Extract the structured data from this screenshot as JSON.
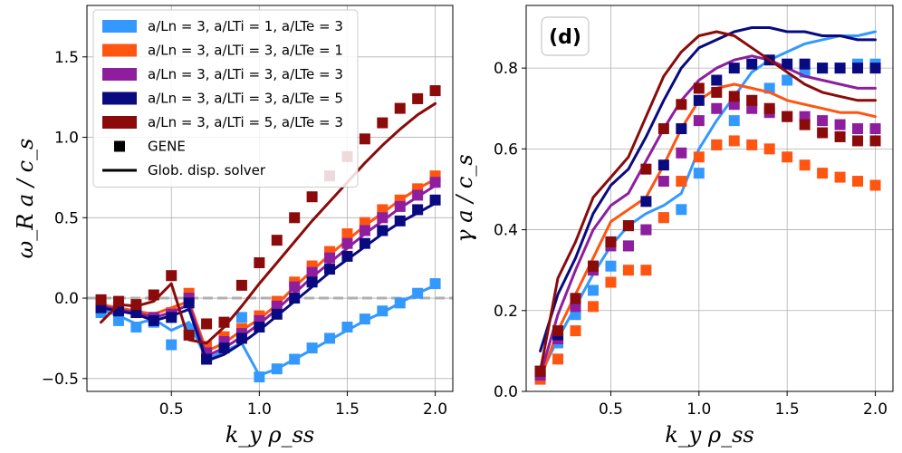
{
  "chart_data": [
    {
      "type": "line",
      "panel": "left",
      "title": "",
      "xlabel": "k_y ρ_ss",
      "ylabel": "ω_R a / c_s",
      "xlim": [
        0.02,
        2.1
      ],
      "ylim": [
        -0.58,
        1.82
      ],
      "xticks": [
        0.5,
        1.0,
        1.5,
        2.0
      ],
      "xtick_labels": [
        "0.5",
        "1.0",
        "1.5",
        "2.0"
      ],
      "yticks": [
        -0.5,
        0.0,
        0.5,
        1.0,
        1.5
      ],
      "ytick_labels": [
        "−0.5",
        "0.0",
        "0.5",
        "1.0",
        "1.5"
      ],
      "grid": true,
      "legend_position": "top-left",
      "legend": [
        {
          "label": "a/Ln = 3, a/LTi = 1, a/LTe = 3",
          "color": "#3399ff",
          "kind": "patch"
        },
        {
          "label": "a/Ln = 3, a/LTi = 3, a/LTe = 1",
          "color": "#ff5511",
          "kind": "patch"
        },
        {
          "label": "a/Ln = 3, a/LTi = 3, a/LTe = 3",
          "color": "#8e1e9e",
          "kind": "patch"
        },
        {
          "label": "a/Ln = 3, a/LTi = 3, a/LTe = 5",
          "color": "#0a0a80",
          "kind": "patch"
        },
        {
          "label": "a/Ln = 3, a/LTi = 5, a/LTe = 3",
          "color": "#8b0a0a",
          "kind": "patch"
        },
        {
          "label": "GENE",
          "color": "#000000",
          "kind": "square"
        },
        {
          "label": "Glob. disp. solver",
          "color": "#000000",
          "kind": "line"
        }
      ],
      "zero_line": 0.0,
      "x": [
        0.1,
        0.2,
        0.3,
        0.4,
        0.5,
        0.6,
        0.7,
        0.8,
        0.9,
        1.0,
        1.1,
        1.2,
        1.3,
        1.4,
        1.5,
        1.6,
        1.7,
        1.8,
        1.9,
        2.0
      ],
      "series": [
        {
          "name": "a/LTi=1, a/LTe=3",
          "color": "#3399ff",
          "gene": [
            -0.09,
            -0.14,
            -0.18,
            -0.15,
            -0.29,
            -0.19,
            -0.37,
            -0.15,
            -0.12,
            -0.49,
            -0.44,
            -0.38,
            -0.31,
            -0.25,
            -0.18,
            -0.13,
            -0.08,
            -0.03,
            0.03,
            0.09
          ],
          "solver": [
            -0.07,
            -0.11,
            -0.16,
            -0.13,
            -0.2,
            -0.15,
            -0.38,
            -0.33,
            -0.28,
            -0.48,
            -0.44,
            -0.38,
            -0.32,
            -0.26,
            -0.2,
            -0.14,
            -0.09,
            -0.03,
            0.03,
            0.08
          ]
        },
        {
          "name": "a/LTi=3, a/LTe=1",
          "color": "#ff5511",
          "gene": [
            -0.05,
            -0.07,
            -0.09,
            -0.12,
            -0.09,
            0.03,
            -0.3,
            -0.24,
            -0.19,
            -0.11,
            -0.02,
            0.1,
            0.2,
            0.29,
            0.4,
            0.47,
            0.55,
            0.61,
            0.68,
            0.76
          ],
          "solver": [
            -0.04,
            -0.06,
            -0.08,
            -0.1,
            -0.06,
            -0.02,
            -0.33,
            -0.28,
            -0.2,
            -0.13,
            -0.04,
            0.07,
            0.17,
            0.27,
            0.36,
            0.45,
            0.53,
            0.61,
            0.68,
            0.74
          ]
        },
        {
          "name": "a/LTi=3, a/LTe=3",
          "color": "#8e1e9e",
          "gene": [
            -0.04,
            -0.06,
            -0.09,
            -0.12,
            -0.1,
            0.0,
            -0.34,
            -0.27,
            -0.22,
            -0.14,
            -0.05,
            0.07,
            0.16,
            0.25,
            0.34,
            0.42,
            0.5,
            0.57,
            0.64,
            0.72
          ],
          "solver": [
            -0.05,
            -0.07,
            -0.09,
            -0.12,
            -0.09,
            -0.04,
            -0.36,
            -0.31,
            -0.24,
            -0.16,
            -0.07,
            0.03,
            0.13,
            0.22,
            0.31,
            0.4,
            0.48,
            0.56,
            0.63,
            0.7
          ]
        },
        {
          "name": "a/LTi=3, a/LTe=5",
          "color": "#0a0a80",
          "gene": [
            -0.06,
            -0.08,
            -0.09,
            -0.14,
            -0.12,
            -0.03,
            -0.38,
            -0.31,
            -0.25,
            -0.18,
            -0.1,
            0.0,
            0.1,
            0.18,
            0.26,
            0.34,
            0.42,
            0.48,
            0.55,
            0.61
          ],
          "solver": [
            -0.06,
            -0.08,
            -0.1,
            -0.14,
            -0.11,
            -0.07,
            -0.39,
            -0.35,
            -0.28,
            -0.2,
            -0.11,
            -0.02,
            0.07,
            0.16,
            0.24,
            0.32,
            0.4,
            0.47,
            0.53,
            0.59
          ]
        },
        {
          "name": "a/LTi=5, a/LTe=3",
          "color": "#8b0a0a",
          "gene": [
            -0.01,
            -0.02,
            -0.04,
            0.02,
            0.14,
            -0.23,
            -0.16,
            -0.15,
            0.08,
            0.22,
            0.36,
            0.5,
            0.63,
            0.76,
            0.88,
            0.99,
            1.09,
            1.18,
            1.24,
            1.29
          ],
          "solver": [
            -0.15,
            -0.04,
            -0.05,
            -0.02,
            0.09,
            -0.26,
            -0.28,
            -0.18,
            -0.05,
            0.09,
            0.22,
            0.35,
            0.48,
            0.6,
            0.72,
            0.84,
            0.95,
            1.05,
            1.14,
            1.21
          ]
        }
      ]
    },
    {
      "type": "line",
      "panel": "right",
      "title": "",
      "annotation": "(d)",
      "xlabel": "k_y ρ_ss",
      "ylabel": "γ a / c_s",
      "xlim": [
        0.02,
        2.1
      ],
      "ylim": [
        0.0,
        0.955
      ],
      "xticks": [
        0.5,
        1.0,
        1.5,
        2.0
      ],
      "xtick_labels": [
        "0.5",
        "1.0",
        "1.5",
        "2.0"
      ],
      "yticks": [
        0.0,
        0.2,
        0.4,
        0.6,
        0.8
      ],
      "ytick_labels": [
        "0.0",
        "0.2",
        "0.4",
        "0.6",
        "0.8"
      ],
      "grid": true,
      "x": [
        0.1,
        0.2,
        0.3,
        0.4,
        0.5,
        0.6,
        0.7,
        0.8,
        0.9,
        1.0,
        1.1,
        1.2,
        1.3,
        1.4,
        1.5,
        1.6,
        1.7,
        1.8,
        1.9,
        2.0
      ],
      "series": [
        {
          "name": "a/LTi=1, a/LTe=3",
          "color": "#3399ff",
          "gene": [
            0.04,
            0.12,
            0.19,
            0.25,
            0.31,
            0.36,
            0.4,
            0.43,
            0.45,
            0.54,
            0.61,
            0.67,
            0.72,
            0.75,
            0.77,
            0.79,
            0.8,
            0.8,
            0.81,
            0.81
          ],
          "solver": [
            0.04,
            0.13,
            0.21,
            0.29,
            0.36,
            0.41,
            0.44,
            0.46,
            0.49,
            0.6,
            0.67,
            0.73,
            0.79,
            0.82,
            0.84,
            0.86,
            0.87,
            0.88,
            0.88,
            0.89
          ]
        },
        {
          "name": "a/LTi=3, a/LTe=1",
          "color": "#ff5511",
          "gene": [
            0.03,
            0.08,
            0.15,
            0.21,
            0.27,
            0.3,
            0.3,
            0.43,
            0.52,
            0.58,
            0.61,
            0.62,
            0.61,
            0.6,
            0.58,
            0.56,
            0.54,
            0.53,
            0.52,
            0.51
          ],
          "solver": [
            0.03,
            0.15,
            0.24,
            0.33,
            0.42,
            0.45,
            0.48,
            0.56,
            0.65,
            0.72,
            0.75,
            0.76,
            0.75,
            0.74,
            0.72,
            0.71,
            0.7,
            0.69,
            0.69,
            0.68
          ]
        },
        {
          "name": "a/LTi=3, a/LTe=3",
          "color": "#8e1e9e",
          "gene": [
            0.04,
            0.13,
            0.21,
            0.3,
            0.36,
            0.36,
            0.4,
            0.52,
            0.59,
            0.67,
            0.7,
            0.71,
            0.7,
            0.69,
            0.68,
            0.68,
            0.67,
            0.66,
            0.65,
            0.65
          ],
          "solver": [
            0.04,
            0.19,
            0.3,
            0.4,
            0.46,
            0.49,
            0.57,
            0.65,
            0.72,
            0.77,
            0.8,
            0.82,
            0.83,
            0.82,
            0.8,
            0.78,
            0.77,
            0.76,
            0.75,
            0.75
          ]
        },
        {
          "name": "a/LTi=3, a/LTe=5",
          "color": "#0a0a80",
          "gene": [
            0.05,
            0.14,
            0.23,
            0.31,
            0.37,
            0.41,
            0.47,
            0.56,
            0.65,
            0.72,
            0.77,
            0.8,
            0.81,
            0.82,
            0.81,
            0.81,
            0.8,
            0.8,
            0.8,
            0.8
          ],
          "solver": [
            0.1,
            0.24,
            0.33,
            0.44,
            0.51,
            0.55,
            0.63,
            0.72,
            0.8,
            0.85,
            0.87,
            0.89,
            0.9,
            0.9,
            0.89,
            0.89,
            0.88,
            0.88,
            0.87,
            0.87
          ]
        },
        {
          "name": "a/LTi=5, a/LTe=3",
          "color": "#8b0a0a",
          "gene": [
            0.05,
            0.15,
            0.23,
            0.31,
            0.37,
            0.41,
            0.55,
            0.65,
            0.71,
            0.75,
            0.74,
            0.73,
            0.72,
            0.7,
            0.68,
            0.66,
            0.64,
            0.63,
            0.62,
            0.62
          ],
          "solver": [
            0.05,
            0.28,
            0.37,
            0.48,
            0.53,
            0.58,
            0.68,
            0.78,
            0.84,
            0.88,
            0.89,
            0.88,
            0.85,
            0.82,
            0.79,
            0.76,
            0.74,
            0.73,
            0.72,
            0.72
          ]
        }
      ]
    }
  ]
}
